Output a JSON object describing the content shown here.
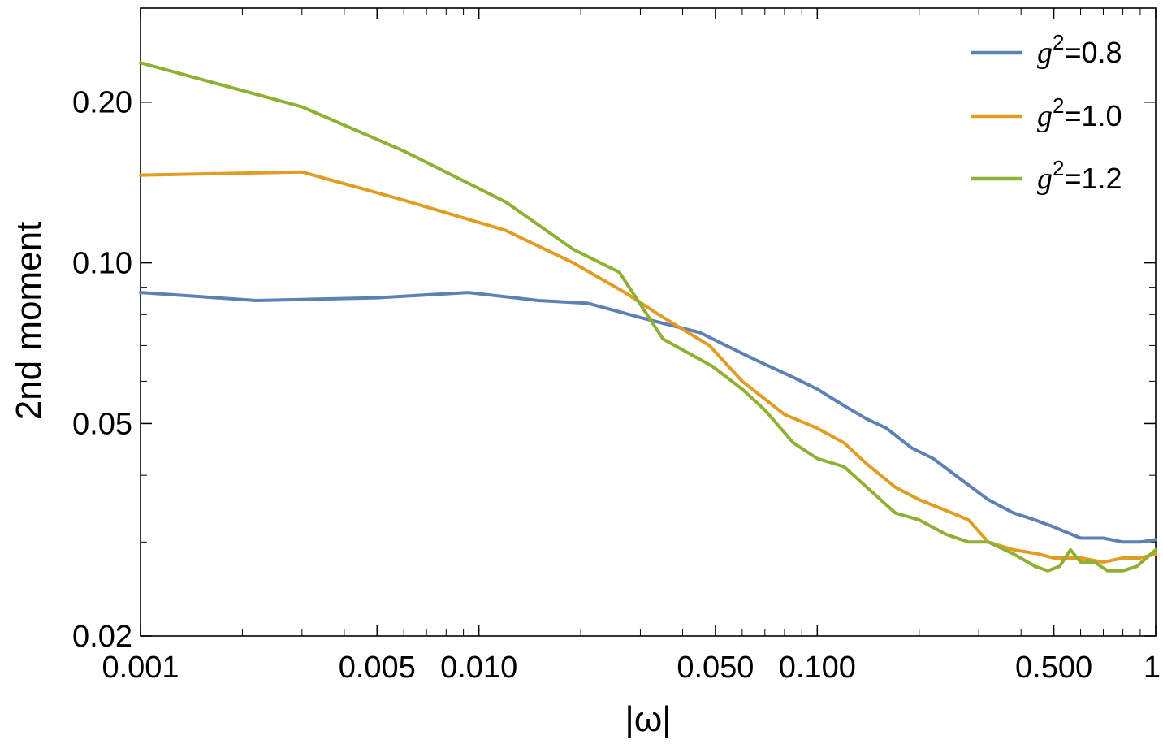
{
  "chart_data": {
    "type": "line",
    "title": "",
    "xlabel": "|ω|",
    "ylabel": "2nd moment",
    "xscale": "log",
    "yscale": "log",
    "xlim": [
      0.001,
      1
    ],
    "ylim": [
      0.02,
      0.3
    ],
    "x_tick_labels": [
      "0.001",
      "0.005",
      "0.010",
      "0.050",
      "0.100",
      "0.500",
      "1"
    ],
    "x_tick_values": [
      0.001,
      0.005,
      0.01,
      0.05,
      0.1,
      0.5,
      1
    ],
    "y_tick_labels": [
      "0.02",
      "0.05",
      "0.10",
      "0.20"
    ],
    "y_tick_values": [
      0.02,
      0.05,
      0.1,
      0.2
    ],
    "legend_position": "top-right",
    "series": [
      {
        "name": "g^2=0.8",
        "name_base": "g",
        "name_sup": "2",
        "name_rest": "=0.8",
        "color": "#5e81b5",
        "x": [
          0.001,
          0.0022,
          0.005,
          0.0093,
          0.015,
          0.021,
          0.03,
          0.045,
          0.065,
          0.085,
          0.1,
          0.12,
          0.14,
          0.16,
          0.19,
          0.22,
          0.27,
          0.32,
          0.38,
          0.44,
          0.5,
          0.6,
          0.7,
          0.8,
          0.9,
          1.0
        ],
        "y": [
          0.088,
          0.085,
          0.086,
          0.088,
          0.085,
          0.084,
          0.079,
          0.074,
          0.066,
          0.061,
          0.058,
          0.054,
          0.051,
          0.049,
          0.045,
          0.043,
          0.039,
          0.036,
          0.034,
          0.033,
          0.032,
          0.0305,
          0.0305,
          0.03,
          0.03,
          0.0303
        ]
      },
      {
        "name": "g^2=1.0",
        "name_base": "g",
        "name_sup": "2",
        "name_rest": "=1.0",
        "color": "#e19c24",
        "x": [
          0.001,
          0.003,
          0.006,
          0.012,
          0.019,
          0.027,
          0.034,
          0.048,
          0.06,
          0.08,
          0.1,
          0.12,
          0.14,
          0.17,
          0.2,
          0.25,
          0.28,
          0.32,
          0.38,
          0.45,
          0.5,
          0.6,
          0.7,
          0.8,
          0.9,
          1.0
        ],
        "y": [
          0.146,
          0.148,
          0.131,
          0.115,
          0.1,
          0.088,
          0.08,
          0.07,
          0.06,
          0.052,
          0.049,
          0.046,
          0.042,
          0.038,
          0.036,
          0.034,
          0.033,
          0.03,
          0.029,
          0.0285,
          0.028,
          0.028,
          0.0275,
          0.028,
          0.028,
          0.0285
        ]
      },
      {
        "name": "g^2=1.2",
        "name_base": "g",
        "name_sup": "2",
        "name_rest": "=1.2",
        "color": "#8fb032",
        "x": [
          0.001,
          0.003,
          0.006,
          0.012,
          0.019,
          0.026,
          0.035,
          0.049,
          0.06,
          0.07,
          0.085,
          0.1,
          0.12,
          0.14,
          0.17,
          0.2,
          0.24,
          0.28,
          0.32,
          0.38,
          0.44,
          0.48,
          0.52,
          0.56,
          0.6,
          0.66,
          0.72,
          0.8,
          0.88,
          1.0
        ],
        "y": [
          0.237,
          0.196,
          0.162,
          0.13,
          0.106,
          0.096,
          0.072,
          0.064,
          0.058,
          0.053,
          0.046,
          0.043,
          0.0415,
          0.038,
          0.034,
          0.033,
          0.031,
          0.03,
          0.03,
          0.0285,
          0.027,
          0.0265,
          0.027,
          0.029,
          0.0275,
          0.0275,
          0.0265,
          0.0265,
          0.027,
          0.029
        ]
      }
    ]
  }
}
